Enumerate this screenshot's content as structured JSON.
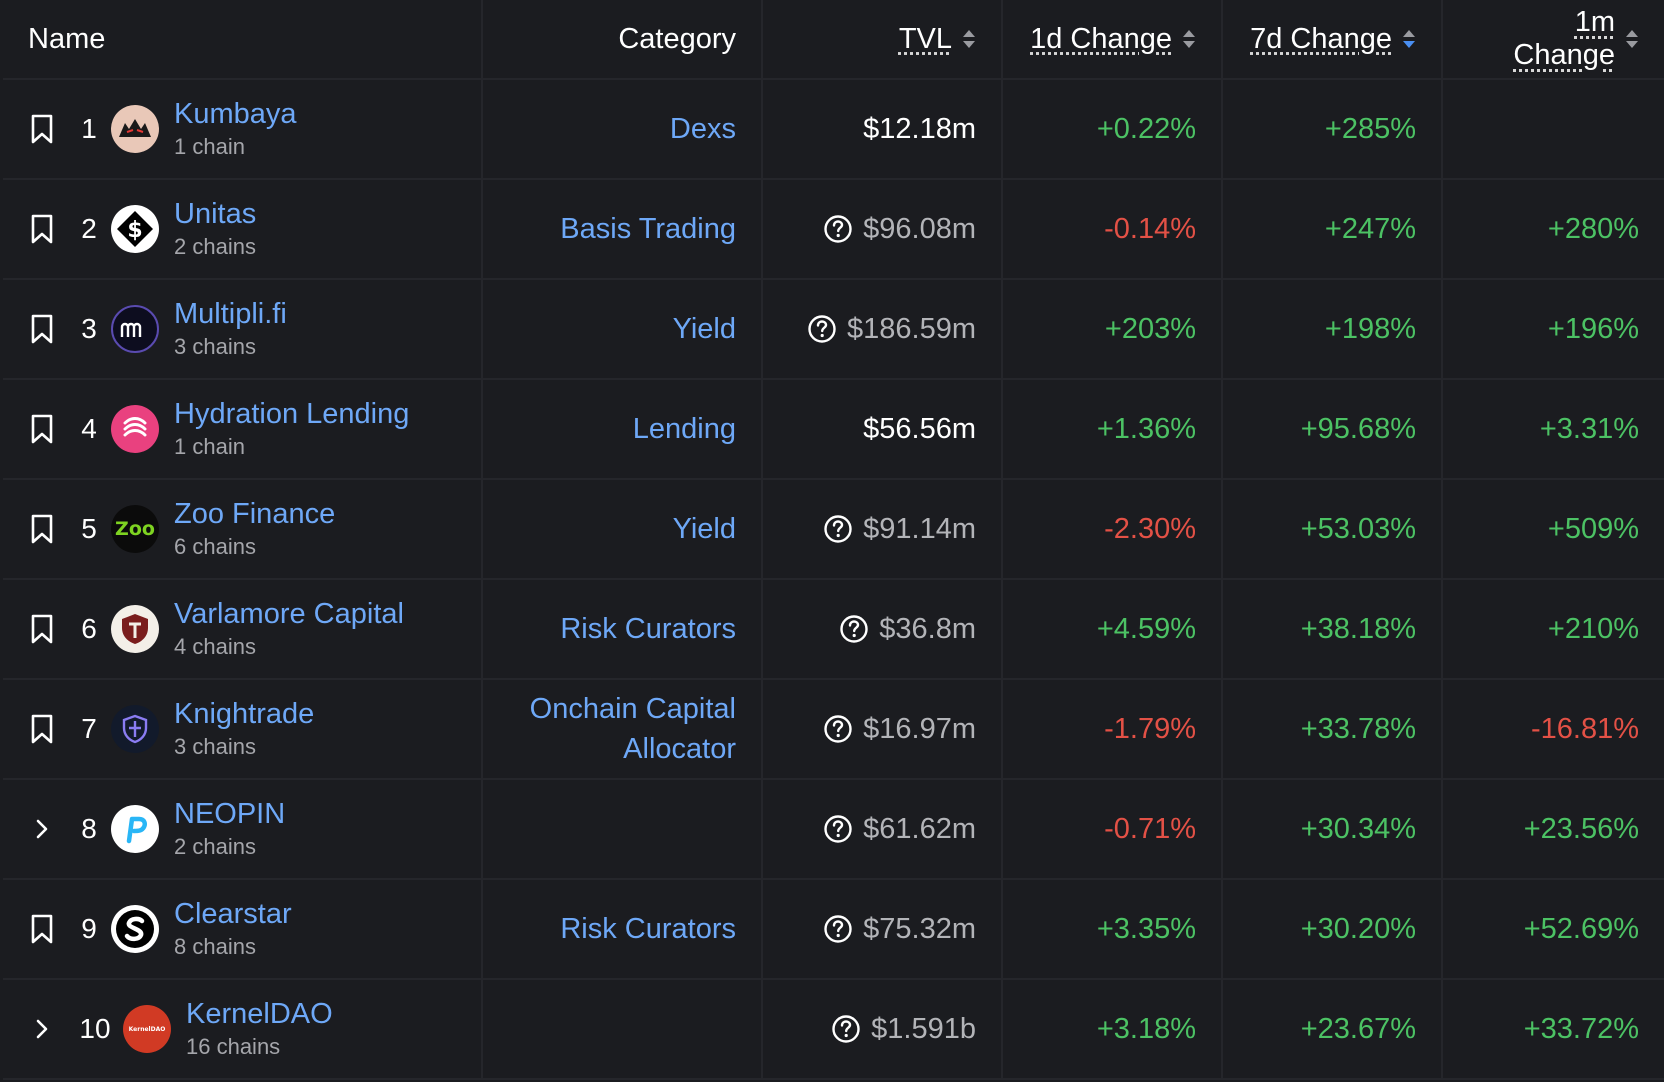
{
  "header": {
    "name": "Name",
    "category": "Category",
    "tvl": "TVL",
    "change_1d": "1d Change",
    "change_7d": "7d Change",
    "change_1m": "1m Change"
  },
  "colors": {
    "link": "#6ea8f7",
    "positive": "#4cc264",
    "negative": "#e35146",
    "sort_active": "#4a8ff2"
  },
  "rows": [
    {
      "rank": "1",
      "lead_icon": "bookmark-icon",
      "name": "Kumbaya",
      "chains": "1 chain",
      "category": "Dexs",
      "tvl": "$12.18m",
      "tvl_flag": false,
      "d1": "+0.22%",
      "d7": "+285%",
      "m1": ""
    },
    {
      "rank": "2",
      "lead_icon": "bookmark-icon",
      "name": "Unitas",
      "chains": "2 chains",
      "category": "Basis Trading",
      "tvl": "$96.08m",
      "tvl_flag": true,
      "d1": "-0.14%",
      "d7": "+247%",
      "m1": "+280%"
    },
    {
      "rank": "3",
      "lead_icon": "bookmark-icon",
      "name": "Multipli.fi",
      "chains": "3 chains",
      "category": "Yield",
      "tvl": "$186.59m",
      "tvl_flag": true,
      "d1": "+203%",
      "d7": "+198%",
      "m1": "+196%"
    },
    {
      "rank": "4",
      "lead_icon": "bookmark-icon",
      "name": "Hydration Lending",
      "chains": "1 chain",
      "category": "Lending",
      "tvl": "$56.56m",
      "tvl_flag": false,
      "d1": "+1.36%",
      "d7": "+95.68%",
      "m1": "+3.31%"
    },
    {
      "rank": "5",
      "lead_icon": "bookmark-icon",
      "name": "Zoo Finance",
      "chains": "6 chains",
      "category": "Yield",
      "tvl": "$91.14m",
      "tvl_flag": true,
      "d1": "-2.30%",
      "d7": "+53.03%",
      "m1": "+509%",
      "logo_text": "Zoo"
    },
    {
      "rank": "6",
      "lead_icon": "bookmark-icon",
      "name": "Varlamore Capital",
      "chains": "4 chains",
      "category": "Risk Curators",
      "tvl": "$36.8m",
      "tvl_flag": true,
      "d1": "+4.59%",
      "d7": "+38.18%",
      "m1": "+210%"
    },
    {
      "rank": "7",
      "lead_icon": "bookmark-icon",
      "name": "Knightrade",
      "chains": "3 chains",
      "category": "Onchain Capital Allocator",
      "tvl": "$16.97m",
      "tvl_flag": true,
      "d1": "-1.79%",
      "d7": "+33.78%",
      "m1": "-16.81%"
    },
    {
      "rank": "8",
      "lead_icon": "chevron-right-icon",
      "name": "NEOPIN",
      "chains": "2 chains",
      "category": "",
      "tvl": "$61.62m",
      "tvl_flag": true,
      "d1": "-0.71%",
      "d7": "+30.34%",
      "m1": "+23.56%"
    },
    {
      "rank": "9",
      "lead_icon": "bookmark-icon",
      "name": "Clearstar",
      "chains": "8 chains",
      "category": "Risk Curators",
      "tvl": "$75.32m",
      "tvl_flag": true,
      "d1": "+3.35%",
      "d7": "+30.20%",
      "m1": "+52.69%"
    },
    {
      "rank": "10",
      "lead_icon": "chevron-right-icon",
      "name": "KernelDAO",
      "chains": "16 chains",
      "category": "",
      "tvl": "$1.591b",
      "tvl_flag": true,
      "d1": "+3.18%",
      "d7": "+23.67%",
      "m1": "+33.72%",
      "logo_text": "KernelDAO"
    }
  ]
}
